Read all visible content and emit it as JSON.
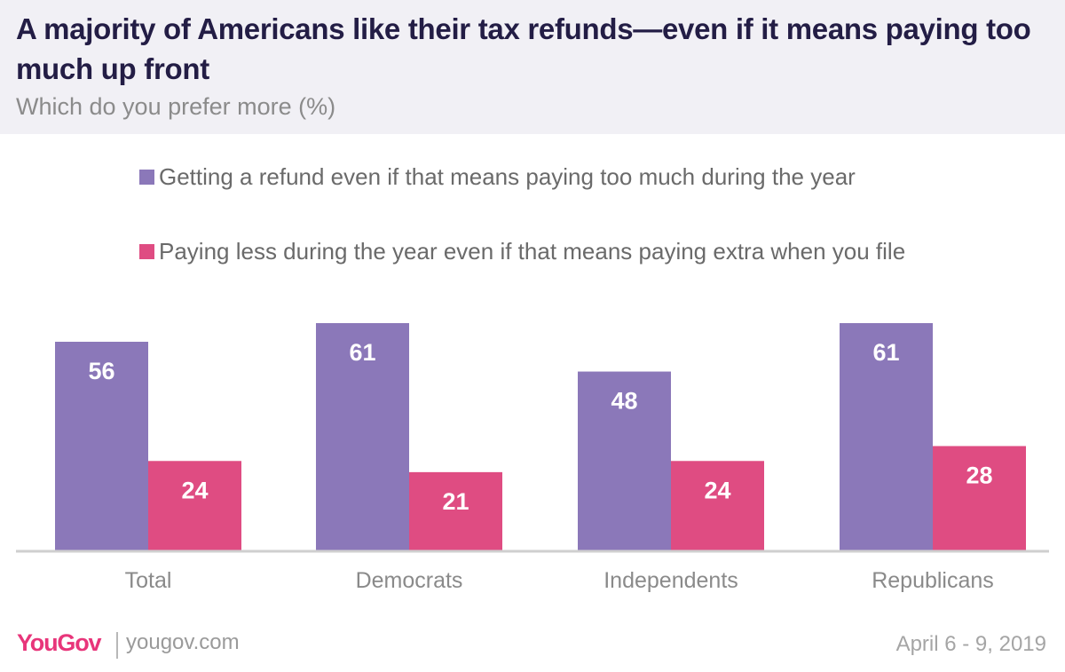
{
  "header": {
    "title": "A majority of Americans like their tax refunds—even if it means paying too much up front",
    "subtitle": "Which do you prefer more (%)"
  },
  "colors": {
    "series_1": "#8b78b9",
    "series_2": "#df4c82",
    "header_bg": "#f1f0f5",
    "brand": "#e8357a"
  },
  "chart_data": {
    "type": "bar",
    "categories": [
      "Total",
      "Democrats",
      "Independents",
      "Republicans"
    ],
    "series": [
      {
        "name": "Getting a refund even if that means paying too much during the year",
        "values": [
          56,
          61,
          48,
          61
        ]
      },
      {
        "name": "Paying less during the year even if that means paying extra when you file",
        "values": [
          24,
          21,
          24,
          28
        ]
      }
    ],
    "ylim": [
      0,
      61
    ],
    "grid": false,
    "legend_position": "top"
  },
  "footer": {
    "logo_text": "YouGov",
    "url": "yougov.com",
    "date": "April 6 - 9, 2019"
  }
}
